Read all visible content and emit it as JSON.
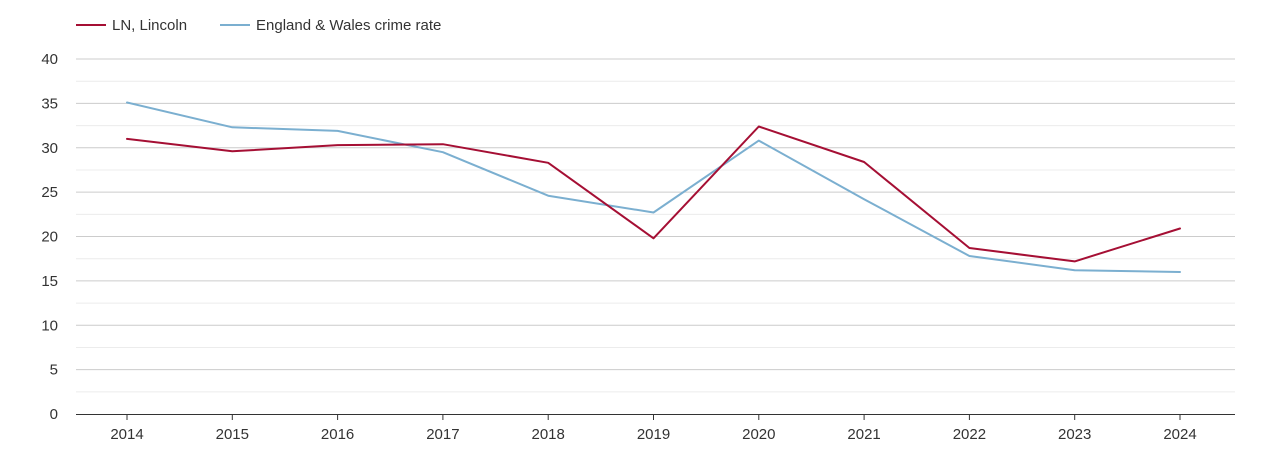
{
  "chart_data": {
    "type": "line",
    "title": "",
    "xlabel": "",
    "ylabel": "",
    "categories": [
      "2014",
      "2015",
      "2016",
      "2017",
      "2018",
      "2019",
      "2020",
      "2021",
      "2022",
      "2023",
      "2024"
    ],
    "ylim": [
      0,
      40
    ],
    "yticks": [
      0,
      5,
      10,
      15,
      20,
      25,
      30,
      35,
      40
    ],
    "grid": true,
    "legend_position": "top-left",
    "series": [
      {
        "name": "LN, Lincoln",
        "color": "#a50f34",
        "values": [
          31.0,
          29.6,
          30.3,
          30.4,
          28.3,
          19.8,
          32.4,
          28.4,
          18.7,
          17.2,
          20.9
        ]
      },
      {
        "name": "England & Wales crime rate",
        "color": "#7bafd0",
        "values": [
          35.1,
          32.3,
          31.9,
          29.5,
          24.6,
          22.7,
          30.8,
          24.2,
          17.8,
          16.2,
          16.0
        ]
      }
    ]
  }
}
